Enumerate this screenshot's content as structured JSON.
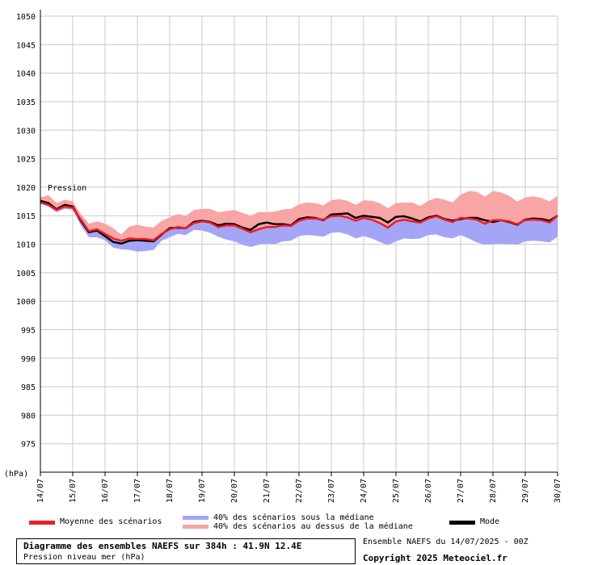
{
  "chart_data": {
    "type": "line",
    "unit_label": "(hPa)",
    "series_label": "Pression",
    "ylim": [
      970,
      1050
    ],
    "yticks": [
      975,
      980,
      985,
      990,
      995,
      1000,
      1005,
      1010,
      1015,
      1020,
      1025,
      1030,
      1035,
      1040,
      1045,
      1050
    ],
    "xlim_hours": [
      0,
      384
    ],
    "xticks": [
      "14/07",
      "15/07",
      "16/07",
      "17/07",
      "18/07",
      "19/07",
      "20/07",
      "21/07",
      "22/07",
      "23/07",
      "24/07",
      "25/07",
      "26/07",
      "27/07",
      "28/07",
      "29/07",
      "30/07"
    ],
    "grid": true,
    "hours": [
      0,
      6,
      12,
      18,
      24,
      30,
      36,
      42,
      48,
      54,
      60,
      66,
      72,
      78,
      84,
      90,
      96,
      102,
      108,
      114,
      120,
      126,
      132,
      138,
      144,
      150,
      156,
      162,
      168,
      174,
      180,
      186,
      192,
      198,
      204,
      210,
      216,
      222,
      228,
      234,
      240,
      246,
      252,
      258,
      264,
      270,
      276,
      282,
      288,
      294,
      300,
      306,
      312,
      318,
      324,
      330,
      336,
      342,
      348,
      354,
      360,
      366,
      372,
      378,
      384
    ],
    "series": [
      {
        "name": "Moyenne des scénarios",
        "color": "#ee1c25",
        "values": [
          1017.3,
          1016.9,
          1016.0,
          1016.6,
          1016.4,
          1014.3,
          1012.3,
          1012.6,
          1011.8,
          1011.0,
          1010.6,
          1011.0,
          1010.9,
          1010.9,
          1010.7,
          1011.8,
          1012.6,
          1013.0,
          1012.8,
          1013.7,
          1014.0,
          1013.8,
          1013.0,
          1013.3,
          1013.3,
          1012.7,
          1012.1,
          1012.6,
          1013.0,
          1013.0,
          1013.3,
          1013.2,
          1014.1,
          1014.5,
          1014.5,
          1014.3,
          1014.9,
          1015.0,
          1014.7,
          1014.1,
          1014.6,
          1014.3,
          1013.7,
          1012.9,
          1014.0,
          1014.3,
          1014.0,
          1013.8,
          1014.5,
          1014.9,
          1014.3,
          1013.9,
          1014.6,
          1014.5,
          1014.3,
          1013.6,
          1014.2,
          1014.2,
          1014.0,
          1013.5,
          1014.2,
          1014.3,
          1014.2,
          1013.8,
          1015.0
        ]
      },
      {
        "name": "Mode",
        "color": "#000000",
        "values": [
          1017.6,
          1017.2,
          1016.1,
          1016.9,
          1016.6,
          1014.1,
          1012.1,
          1012.4,
          1011.4,
          1010.4,
          1010.1,
          1010.6,
          1010.7,
          1010.6,
          1010.5,
          1011.7,
          1012.8,
          1012.9,
          1012.8,
          1013.9,
          1014.1,
          1013.9,
          1013.3,
          1013.6,
          1013.5,
          1012.9,
          1012.5,
          1013.5,
          1013.8,
          1013.5,
          1013.5,
          1013.3,
          1014.4,
          1014.7,
          1014.6,
          1014.2,
          1015.2,
          1015.3,
          1015.4,
          1014.6,
          1015.0,
          1014.8,
          1014.6,
          1013.8,
          1014.8,
          1014.9,
          1014.5,
          1014.0,
          1014.7,
          1015.0,
          1014.4,
          1014.1,
          1014.4,
          1014.6,
          1014.6,
          1014.2,
          1013.9,
          1014.2,
          1013.9,
          1013.4,
          1014.3,
          1014.5,
          1014.4,
          1014.1,
          1015.0
        ]
      }
    ],
    "bands": [
      {
        "name": "40% des scénarios sous la médiane",
        "color": "#a5a5f7",
        "lower": [
          1017.1,
          1016.6,
          1015.6,
          1016.2,
          1016.0,
          1013.3,
          1011.2,
          1011.2,
          1010.7,
          1009.4,
          1009.1,
          1009.0,
          1008.7,
          1008.8,
          1009.0,
          1010.6,
          1011.2,
          1011.8,
          1011.6,
          1012.5,
          1012.4,
          1012.0,
          1011.3,
          1010.8,
          1010.5,
          1009.9,
          1009.5,
          1009.9,
          1010.1,
          1010.0,
          1010.5,
          1010.6,
          1011.4,
          1011.6,
          1011.5,
          1011.3,
          1012.0,
          1012.1,
          1011.7,
          1011.0,
          1011.4,
          1011.0,
          1010.4,
          1009.8,
          1010.5,
          1011.0,
          1010.9,
          1011.0,
          1011.6,
          1011.7,
          1011.2,
          1011.0,
          1011.6,
          1011.0,
          1010.3,
          1009.9,
          1010.0,
          1010.1,
          1010.0,
          1009.9,
          1010.5,
          1010.6,
          1010.5,
          1010.3,
          1011.3
        ],
        "upper": [
          1017.3,
          1016.9,
          1016.0,
          1016.6,
          1016.4,
          1014.3,
          1012.3,
          1012.6,
          1011.8,
          1011.0,
          1010.6,
          1011.0,
          1010.9,
          1010.9,
          1010.7,
          1011.8,
          1012.6,
          1013.0,
          1012.8,
          1013.7,
          1014.0,
          1013.8,
          1013.0,
          1013.3,
          1013.3,
          1012.7,
          1012.1,
          1012.6,
          1013.0,
          1013.0,
          1013.3,
          1013.2,
          1014.1,
          1014.5,
          1014.5,
          1014.3,
          1014.9,
          1015.0,
          1014.7,
          1014.1,
          1014.6,
          1014.3,
          1013.7,
          1012.9,
          1014.0,
          1014.3,
          1014.0,
          1013.8,
          1014.5,
          1014.9,
          1014.3,
          1013.9,
          1014.6,
          1014.5,
          1014.3,
          1013.6,
          1014.2,
          1014.2,
          1014.0,
          1013.5,
          1014.2,
          1014.3,
          1014.2,
          1013.8,
          1015.0
        ]
      },
      {
        "name": "40% des scénarios au dessus de la médiane",
        "color": "#f7a5a5",
        "lower": [
          1017.3,
          1016.9,
          1016.0,
          1016.6,
          1016.4,
          1014.3,
          1012.3,
          1012.6,
          1011.8,
          1011.0,
          1010.6,
          1011.0,
          1010.9,
          1010.9,
          1010.7,
          1011.8,
          1012.6,
          1013.0,
          1012.8,
          1013.7,
          1014.0,
          1013.8,
          1013.0,
          1013.3,
          1013.3,
          1012.7,
          1012.1,
          1012.6,
          1013.0,
          1013.0,
          1013.3,
          1013.2,
          1014.1,
          1014.5,
          1014.5,
          1014.3,
          1014.9,
          1015.0,
          1014.7,
          1014.1,
          1014.6,
          1014.3,
          1013.7,
          1012.9,
          1014.0,
          1014.3,
          1014.0,
          1013.8,
          1014.5,
          1014.9,
          1014.3,
          1013.9,
          1014.6,
          1014.5,
          1014.3,
          1013.6,
          1014.2,
          1014.2,
          1014.0,
          1013.5,
          1014.2,
          1014.3,
          1014.2,
          1013.8,
          1015.0
        ],
        "upper": [
          1018.2,
          1018.6,
          1017.2,
          1017.8,
          1017.5,
          1015.3,
          1013.6,
          1014.0,
          1013.6,
          1012.8,
          1011.7,
          1013.1,
          1013.4,
          1013.1,
          1012.9,
          1014.1,
          1014.7,
          1015.3,
          1015.0,
          1016.0,
          1016.2,
          1016.2,
          1015.6,
          1015.8,
          1016.0,
          1015.5,
          1015.0,
          1015.6,
          1015.6,
          1015.7,
          1016.1,
          1016.2,
          1017.0,
          1017.3,
          1017.2,
          1016.8,
          1017.7,
          1017.9,
          1017.6,
          1016.9,
          1017.7,
          1017.6,
          1017.2,
          1016.3,
          1017.2,
          1017.3,
          1017.3,
          1016.7,
          1017.6,
          1018.1,
          1017.8,
          1017.3,
          1018.7,
          1019.3,
          1019.2,
          1018.3,
          1019.3,
          1019.1,
          1018.5,
          1017.5,
          1018.2,
          1018.4,
          1018.1,
          1017.5,
          1018.5
        ]
      }
    ],
    "legend": {
      "mean": "Moyenne des scénarios",
      "below": "40% des scénarios sous la médiane",
      "above": "40% des scénarios au dessus de la médiane",
      "mode": "Mode"
    }
  },
  "footer": {
    "title": "Diagramme des ensembles NAEFS sur 384h : 41.9N 12.4E",
    "subtitle": "Pression niveau mer (hPa)",
    "run": "Ensemble NAEFS du 14/07/2025 - 00Z",
    "copyright": "Copyright 2025 Meteociel.fr"
  },
  "colors": {
    "grid": "#c8c8c8",
    "axis": "#000000",
    "mean_swatch": "#ee1c25",
    "below_swatch": "#a5a5f7",
    "above_swatch": "#f7a5a5",
    "mode_swatch": "#000000"
  }
}
